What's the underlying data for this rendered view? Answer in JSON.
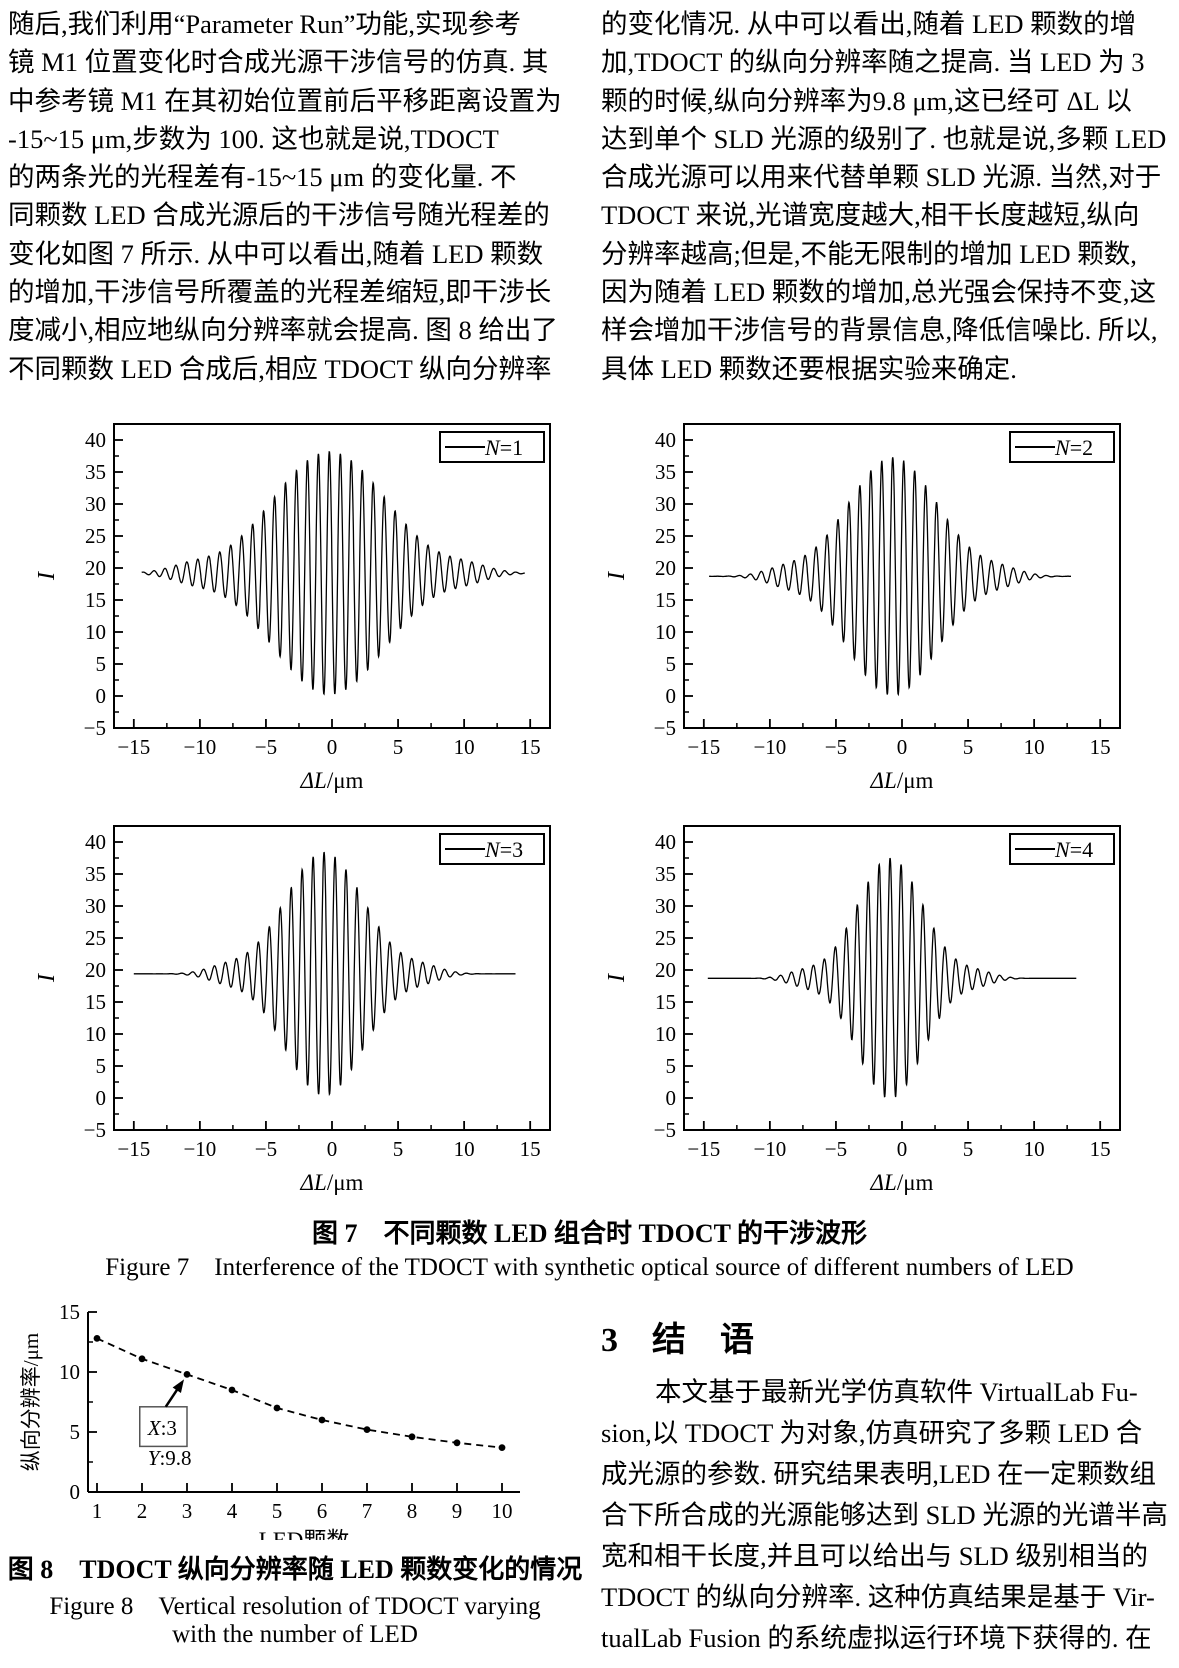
{
  "columns": {
    "left": [
      "随后,我们利用“Parameter Run”功能,实现参考",
      "镜 M1 位置变化时合成光源干涉信号的仿真. 其",
      "中参考镜 M1 在其初始位置前后平移距离设置为",
      "-15~15 μm,步数为 100. 这也就是说,TDOCT",
      "的两条光的光程差有-15~15 μm 的变化量. 不",
      "同颗数 LED 合成光源后的干涉信号随光程差的",
      "变化如图 7 所示. 从中可以看出,随着 LED 颗数",
      "的增加,干涉信号所覆盖的光程差缩短,即干涉长",
      "度减小,相应地纵向分辨率就会提高. 图 8 给出了",
      "不同颗数 LED 合成后,相应 TDOCT 纵向分辨率"
    ],
    "right": [
      "的变化情况. 从中可以看出,随着 LED 颗数的增",
      "加,TDOCT 的纵向分辨率随之提高. 当 LED 为 3",
      "颗的时候,纵向分辨率为9.8 μm,这已经可 ΔL 以",
      "达到单个 SLD 光源的级别了. 也就是说,多颗 LED",
      "合成光源可以用来代替单颗 SLD 光源. 当然,对于",
      "TDOCT 来说,光谱宽度越大,相干长度越短,纵向",
      "分辨率越高;但是,不能无限制的增加 LED 颗数,",
      "因为随着 LED 颗数的增加,总光强会保持不变,这",
      "样会增加干涉信号的背景信息,降低信噪比. 所以,",
      "具体 LED 颗数还要根据实验来确定."
    ]
  },
  "figure7": {
    "caption_cn": "图 7　不同颗数 LED 组合时 TDOCT 的干涉波形",
    "caption_en": "Figure 7　Interference of the TDOCT with synthetic optical source of different numbers of LED"
  },
  "figure8": {
    "caption_cn": "图 8　TDOCT 纵向分辨率随 LED 颗数变化的情况",
    "caption_en_line1": "Figure 8　Vertical resolution of TDOCT varying",
    "caption_en_line2": "with the number of LED"
  },
  "section3": {
    "heading": "3　结　语",
    "paragraph": [
      "本文基于最新光学仿真软件 VirtualLab Fu-",
      "sion,以 TDOCT 为对象,仿真研究了多颗 LED 合",
      "成光源的参数. 研究结果表明,LED 在一定颗数组",
      "合下所合成的光源能够达到 SLD 光源的光谱半高",
      "宽和相干长度,并且可以给出与 SLD 级别相当的",
      "TDOCT 的纵向分辨率. 这种仿真结果是基于 Vir-",
      "tualLab Fusion 的系统虚拟运行环境下获得的. 在"
    ]
  },
  "chart_data": [
    {
      "type": "line",
      "subtype": "interference-wave",
      "legend": "N=1",
      "xlabel": "ΔL/μm",
      "ylabel": "I",
      "xlim": [
        -16.5,
        16.5
      ],
      "ylim": [
        -5,
        42.5
      ],
      "xticks": [
        -15,
        -10,
        -5,
        0,
        5,
        10,
        15
      ],
      "yticks": [
        -5,
        0,
        5,
        10,
        15,
        20,
        25,
        30,
        35,
        40
      ],
      "model": "I(x)=baseline+amplitude*[gauss(x)+tail]*cos(2πx/period)",
      "signal": {
        "baseline": 19.2,
        "amplitude": 19.0,
        "center": -0.2,
        "sigma": 4.3,
        "period": 0.83,
        "x_start": -14.4,
        "x_end": 14.6,
        "tail_bump": {
          "ratio": 0.05,
          "distance": 10.5,
          "width": 1.6
        }
      }
    },
    {
      "type": "line",
      "subtype": "interference-wave",
      "legend": "N=2",
      "xlabel": "ΔL/μm",
      "ylabel": "I",
      "xlim": [
        -16.5,
        16.5
      ],
      "ylim": [
        -5,
        42.5
      ],
      "xticks": [
        -15,
        -10,
        -5,
        0,
        5,
        10,
        15
      ],
      "yticks": [
        -5,
        0,
        5,
        10,
        15,
        20,
        25,
        30,
        35,
        40
      ],
      "model": "I(x)=baseline+amplitude*[gauss(x)+tail]*cos(2πx/period)",
      "signal": {
        "baseline": 18.7,
        "amplitude": 18.6,
        "center": -0.7,
        "sigma": 3.4,
        "period": 0.83,
        "x_start": -14.6,
        "x_end": 12.8,
        "tail_bump": {
          "ratio": 0.05,
          "distance": 8.3,
          "width": 1.5
        }
      }
    },
    {
      "type": "line",
      "subtype": "interference-wave",
      "legend": "N=3",
      "xlabel": "ΔL/μm",
      "ylabel": "I",
      "xlim": [
        -16.5,
        16.5
      ],
      "ylim": [
        -5,
        42.5
      ],
      "xticks": [
        -15,
        -10,
        -5,
        0,
        5,
        10,
        15
      ],
      "yticks": [
        -5,
        0,
        5,
        10,
        15,
        20,
        25,
        30,
        35,
        40
      ],
      "model": "I(x)=baseline+amplitude*[gauss(x)+tail]*cos(2πx/period)",
      "signal": {
        "baseline": 19.4,
        "amplitude": 19.0,
        "center": -0.6,
        "sigma": 3.0,
        "period": 0.83,
        "x_start": -15.0,
        "x_end": 13.9,
        "tail_bump": {
          "ratio": 0.05,
          "distance": 7.6,
          "width": 1.4
        }
      }
    },
    {
      "type": "line",
      "subtype": "interference-wave",
      "legend": "N=4",
      "xlabel": "ΔL/μm",
      "ylabel": "I",
      "xlim": [
        -16.5,
        16.5
      ],
      "ylim": [
        -5,
        42.5
      ],
      "xticks": [
        -15,
        -10,
        -5,
        0,
        5,
        10,
        15
      ],
      "yticks": [
        -5,
        0,
        5,
        10,
        15,
        20,
        25,
        30,
        35,
        40
      ],
      "model": "I(x)=baseline+amplitude*[gauss(x)+tail]*cos(2πx/period)",
      "signal": {
        "baseline": 18.7,
        "amplitude": 18.8,
        "center": -0.9,
        "sigma": 2.5,
        "period": 0.83,
        "x_start": -14.7,
        "x_end": 13.2,
        "tail_bump": {
          "ratio": 0.05,
          "distance": 6.6,
          "width": 1.3
        }
      }
    },
    {
      "type": "line",
      "subtype": "dashed-markers",
      "title": "",
      "xlabel": "LED颗数",
      "ylabel": "纵向分辨率/μm",
      "x": [
        1,
        2,
        3,
        4,
        5,
        6,
        7,
        8,
        9,
        10
      ],
      "y": [
        12.8,
        11.1,
        9.8,
        8.5,
        7.0,
        6.0,
        5.2,
        4.6,
        4.1,
        3.7
      ],
      "xlim": [
        0.8,
        10.4
      ],
      "ylim": [
        0,
        15
      ],
      "xticks": [
        1,
        2,
        3,
        4,
        5,
        6,
        7,
        8,
        9,
        10
      ],
      "yticks": [
        0,
        5,
        10,
        15
      ],
      "annotation": {
        "line1": "X:3",
        "line2": "Y:9.8",
        "target_x": 3,
        "target_y": 9.8
      }
    }
  ]
}
